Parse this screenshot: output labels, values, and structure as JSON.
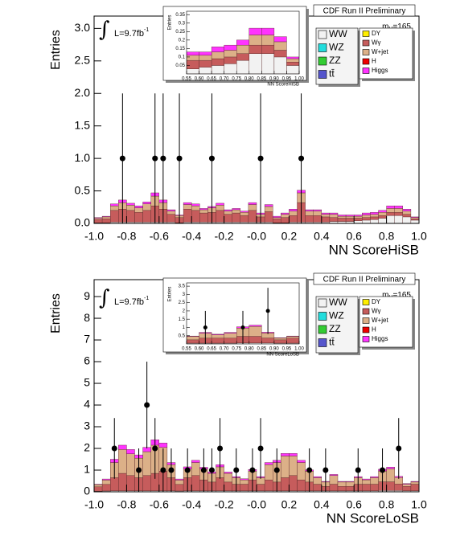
{
  "chart_data": [
    {
      "type": "histogram",
      "header": "CDF Run II Preliminary",
      "mass_label": {
        "base": "m",
        "sub": "H",
        "tail": "=165"
      },
      "lumi": {
        "symbol": "∫",
        "base": "L=9.7fb",
        "sup": "-1"
      },
      "ylabel": "Entries",
      "xlabel": "NN ScoreHiSB",
      "xlim": [
        -1,
        1
      ],
      "ylim": [
        0,
        3.19
      ],
      "xticks": [
        {
          "value": -1,
          "label": "-1.0"
        },
        -0.8,
        -0.6,
        -0.4,
        -0.2,
        {
          "value": 0,
          "label": "-0.0"
        },
        0.2,
        0.4,
        0.6,
        0.8,
        {
          "value": 1,
          "label": "1.0"
        }
      ],
      "yticks": [
        {
          "value": 0,
          "label": "0.0"
        },
        0.5,
        {
          "value": 1,
          "label": "1.0"
        },
        1.5,
        {
          "value": 2,
          "label": "2.0"
        },
        2.5,
        {
          "value": 3,
          "label": "3.0"
        }
      ],
      "bins": [
        -1,
        -0.95,
        -0.9,
        -0.85,
        -0.8,
        -0.75,
        -0.7,
        -0.65,
        -0.6,
        -0.55,
        -0.5,
        -0.45,
        -0.4,
        -0.35,
        -0.3,
        -0.25,
        -0.2,
        -0.15,
        -0.1,
        -0.05,
        0,
        0.05,
        0.1,
        0.15,
        0.2,
        0.25,
        0.3,
        0.35,
        0.4,
        0.45,
        0.5,
        0.55,
        0.6,
        0.65,
        0.7,
        0.75,
        0.8,
        0.85,
        0.9,
        0.95,
        1
      ],
      "series": [
        {
          "name": "WW",
          "color": "#f2f2f2",
          "values": [
            0.01,
            0.01,
            0.02,
            0.02,
            0.02,
            0.02,
            0.02,
            0.02,
            0.02,
            0.02,
            0.01,
            0.02,
            0.02,
            0.02,
            0.02,
            0.02,
            0.02,
            0.02,
            0.02,
            0.02,
            0.02,
            0.02,
            0.01,
            0.01,
            0.02,
            0.02,
            0.02,
            0.02,
            0.02,
            0.03,
            0.03,
            0.03,
            0.04,
            0.05,
            0.06,
            0.08,
            0.12,
            0.12,
            0.1,
            0.05
          ]
        },
        {
          "name": "WZ",
          "color": "#22dddd"
        },
        {
          "name": "ZZ",
          "color": "#33cc33"
        },
        {
          "name": "tt̄",
          "color": "#5555cc"
        },
        {
          "name": "DY",
          "color": "#ffee00"
        },
        {
          "name": "Wγ",
          "color": "#c65c5c",
          "values": [
            0.05,
            0.06,
            0.18,
            0.2,
            0.18,
            0.15,
            0.18,
            0.25,
            0.2,
            0.12,
            0.08,
            0.2,
            0.18,
            0.14,
            0.15,
            0.18,
            0.12,
            0.14,
            0.1,
            0.18,
            0.08,
            0.16,
            0.06,
            0.08,
            0.1,
            0.3,
            0.1,
            0.1,
            0.08,
            0.06,
            0.05,
            0.05,
            0.04,
            0.04,
            0.04,
            0.04,
            0.05,
            0.05,
            0.04,
            0.02
          ]
        },
        {
          "name": "W+jet",
          "color": "#dcb088",
          "values": [
            0.02,
            0.03,
            0.07,
            0.1,
            0.08,
            0.07,
            0.1,
            0.15,
            0.1,
            0.05,
            0.03,
            0.07,
            0.07,
            0.05,
            0.07,
            0.08,
            0.05,
            0.05,
            0.05,
            0.09,
            0.04,
            0.08,
            0.02,
            0.05,
            0.07,
            0.15,
            0.07,
            0.07,
            0.04,
            0.05,
            0.03,
            0.03,
            0.03,
            0.04,
            0.04,
            0.05,
            0.06,
            0.06,
            0.05,
            0.02
          ]
        },
        {
          "name": "H",
          "color": "#ee0000"
        },
        {
          "name": "Higgs",
          "color": "#ff33ff",
          "values": [
            0.01,
            0.01,
            0.03,
            0.04,
            0.03,
            0.03,
            0.03,
            0.05,
            0.04,
            0.02,
            0.01,
            0.03,
            0.03,
            0.02,
            0.02,
            0.03,
            0.02,
            0.02,
            0.02,
            0.03,
            0.02,
            0.03,
            0.02,
            0.02,
            0.03,
            0.04,
            0.02,
            0.02,
            0.02,
            0.02,
            0.02,
            0.02,
            0.02,
            0.03,
            0.03,
            0.03,
            0.04,
            0.04,
            0.03,
            0.01
          ]
        }
      ],
      "data_points": {
        "x": [
          -0.825,
          -0.625,
          -0.575,
          -0.475,
          -0.275,
          0.025,
          0.275
        ],
        "values": [
          1,
          1,
          1,
          1,
          1,
          1,
          1
        ],
        "errors": [
          1,
          1,
          1,
          1,
          1,
          1,
          1
        ]
      },
      "inset": {
        "ylabel": "Entries",
        "xlabel": "NN ScoreHiSB",
        "xlim": [
          0.55,
          1
        ],
        "ylim": [
          0,
          0.37
        ],
        "xticks": [
          0.55,
          {
            "value": 0.6,
            "label": "0.60"
          },
          0.65,
          {
            "value": 0.7,
            "label": "0.70"
          },
          0.75,
          {
            "value": 0.8,
            "label": "0.80"
          },
          0.85,
          {
            "value": 0.9,
            "label": "0.90"
          },
          0.95,
          {
            "value": 1,
            "label": "1.00"
          }
        ],
        "yticks": [
          0.05,
          0.1,
          0.15,
          0.2,
          0.25,
          0.3,
          0.35
        ]
      }
    },
    {
      "type": "histogram",
      "header": "CDF Run II Preliminary",
      "mass_label": {
        "base": "m",
        "sub": "H",
        "tail": "=165"
      },
      "lumi": {
        "symbol": "∫",
        "base": "L=9.7fb",
        "sup": "-1"
      },
      "ylabel": "Entries",
      "xlabel": "NN ScoreLoSB",
      "xlim": [
        -1,
        1
      ],
      "ylim": [
        0,
        9.78
      ],
      "xticks": [
        {
          "value": -1,
          "label": "-1.0"
        },
        -0.8,
        -0.6,
        -0.4,
        -0.2,
        {
          "value": 0,
          "label": "-0.0"
        },
        0.2,
        0.4,
        0.6,
        0.8,
        {
          "value": 1,
          "label": "1.0"
        }
      ],
      "yticks": [
        0,
        1,
        2,
        3,
        4,
        5,
        6,
        7,
        8,
        9
      ],
      "bins": [
        -1,
        -0.95,
        -0.9,
        -0.85,
        -0.8,
        -0.75,
        -0.7,
        -0.65,
        -0.6,
        -0.55,
        -0.5,
        -0.45,
        -0.4,
        -0.35,
        -0.3,
        -0.25,
        -0.2,
        -0.15,
        -0.1,
        -0.05,
        0,
        0.05,
        0.1,
        0.15,
        0.2,
        0.25,
        0.3,
        0.35,
        0.4,
        0.45,
        0.5,
        0.55,
        0.6,
        0.65,
        0.7,
        0.75,
        0.8,
        0.85,
        0.9,
        0.95,
        1
      ],
      "series": [
        {
          "name": "WW",
          "color": "#f2f2f2",
          "values": [
            0.03,
            0.04,
            0.05,
            0.05,
            0.05,
            0.05,
            0.05,
            0.05,
            0.05,
            0.05,
            0.04,
            0.05,
            0.05,
            0.05,
            0.05,
            0.05,
            0.05,
            0.05,
            0.05,
            0.05,
            0.05,
            0.05,
            0.05,
            0.05,
            0.05,
            0.05,
            0.05,
            0.05,
            0.05,
            0.05,
            0.05,
            0.05,
            0.05,
            0.05,
            0.05,
            0.06,
            0.06,
            0.06,
            0.05,
            0.05
          ]
        },
        {
          "name": "WZ",
          "color": "#22dddd"
        },
        {
          "name": "ZZ",
          "color": "#33cc33"
        },
        {
          "name": "tt̄",
          "color": "#5555cc"
        },
        {
          "name": "DY",
          "color": "#ffee00"
        },
        {
          "name": "Wγ",
          "color": "#c65c5c",
          "values": [
            0.2,
            0.3,
            0.6,
            0.8,
            0.7,
            0.6,
            0.7,
            0.8,
            0.9,
            0.6,
            0.3,
            0.6,
            0.7,
            0.5,
            0.4,
            0.6,
            0.4,
            0.3,
            0.3,
            0.5,
            0.3,
            0.5,
            0.4,
            0.6,
            0.7,
            0.5,
            0.4,
            0.3,
            0.2,
            0.3,
            0.2,
            0.2,
            0.3,
            0.3,
            0.3,
            0.4,
            0.4,
            0.3,
            0.2,
            0.3
          ]
        },
        {
          "name": "W+jet",
          "color": "#dcb088",
          "values": [
            0.1,
            0.2,
            0.7,
            1.1,
            1,
            0.9,
            1.1,
            1.3,
            1.1,
            0.6,
            0.2,
            0.4,
            0.6,
            0.5,
            0.4,
            0.5,
            0.4,
            0.3,
            0.2,
            0.4,
            0.3,
            0.7,
            0.9,
            1,
            0.9,
            0.8,
            0.5,
            0.3,
            0.2,
            0.4,
            0.2,
            0.2,
            0.3,
            0.2,
            0.3,
            0.5,
            0.6,
            0.3,
            0.1,
            0.1
          ]
        },
        {
          "name": "H",
          "color": "#ee0000"
        },
        {
          "name": "Higgs",
          "color": "#ff33ff",
          "values": [
            0.02,
            0.05,
            0.15,
            0.2,
            0.2,
            0.15,
            0.2,
            0.25,
            0.2,
            0.1,
            0.05,
            0.1,
            0.1,
            0.08,
            0.06,
            0.1,
            0.06,
            0.05,
            0.05,
            0.08,
            0.05,
            0.1,
            0.1,
            0.12,
            0.12,
            0.1,
            0.06,
            0.05,
            0.03,
            0.05,
            0.03,
            0.03,
            0.05,
            0.04,
            0.05,
            0.08,
            0.08,
            0.05,
            0.03,
            0.03
          ]
        }
      ],
      "data_points": {
        "x": [
          -0.875,
          -0.725,
          -0.675,
          -0.625,
          -0.575,
          -0.525,
          -0.425,
          -0.325,
          -0.275,
          -0.225,
          -0.125,
          -0.025,
          0.025,
          0.125,
          0.325,
          0.425,
          0.625,
          0.775,
          0.875
        ],
        "values": [
          2,
          1,
          4,
          2,
          1,
          1,
          1,
          1,
          1,
          2,
          1,
          1,
          2,
          1,
          1,
          1,
          1,
          1,
          2
        ],
        "errors": [
          1.4,
          1,
          2,
          1.4,
          1,
          1,
          1,
          1,
          1,
          1.4,
          1,
          1,
          1.4,
          1,
          1,
          1,
          1,
          1,
          1.4
        ]
      },
      "inset": {
        "ylabel": "Entries",
        "xlabel": "NN ScoreLoSB",
        "xlim": [
          0.55,
          1
        ],
        "ylim": [
          0,
          3.7
        ],
        "xticks": [
          0.55,
          {
            "value": 0.6,
            "label": "0.60"
          },
          0.65,
          {
            "value": 0.7,
            "label": "0.70"
          },
          0.75,
          {
            "value": 0.8,
            "label": "0.80"
          },
          0.85,
          {
            "value": 0.9,
            "label": "0.90"
          },
          0.95,
          {
            "value": 1,
            "label": "1.00"
          }
        ],
        "yticks": [
          0.5,
          1,
          1.5,
          2,
          2.5,
          3,
          3.5
        ]
      }
    }
  ]
}
